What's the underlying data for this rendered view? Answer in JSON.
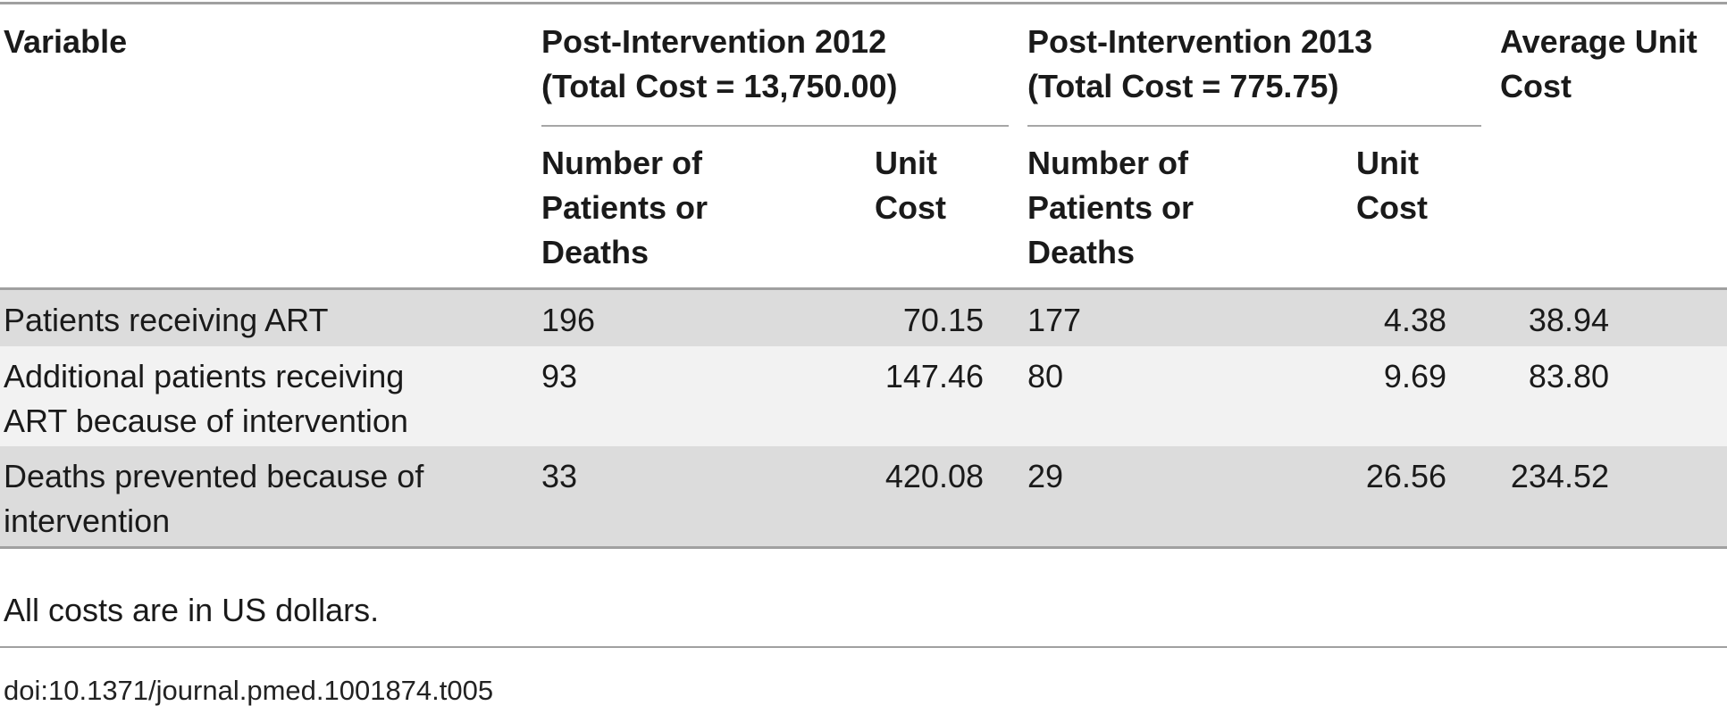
{
  "table": {
    "headers": {
      "variable": "Variable",
      "group_2012": [
        "Post-Intervention 2012",
        "(Total Cost = 13,750.00)"
      ],
      "group_2013": [
        "Post-Intervention 2013",
        "(Total Cost = 775.75)"
      ],
      "average": [
        "Average Unit",
        "Cost"
      ],
      "number_col": [
        "Number of",
        "Patients or",
        "Deaths"
      ],
      "unit_cost_col": [
        "Unit",
        "Cost"
      ]
    },
    "rows": [
      {
        "variable": [
          "Patients receiving ART"
        ],
        "n_2012": "196",
        "uc_2012": "70.15",
        "n_2013": "177",
        "uc_2013": "4.38",
        "avg": "38.94"
      },
      {
        "variable": [
          "Additional patients receiving",
          "ART because of intervention"
        ],
        "n_2012": "93",
        "uc_2012": "147.46",
        "n_2013": "80",
        "uc_2013": "9.69",
        "avg": "83.80"
      },
      {
        "variable": [
          "Deaths prevented because of",
          "intervention"
        ],
        "n_2012": "33",
        "uc_2012": "420.08",
        "n_2013": "29",
        "uc_2013": "26.56",
        "avg": "234.52"
      }
    ],
    "footnote": "All costs are in US dollars.",
    "doi": "doi:10.1371/journal.pmed.1001874.t005"
  }
}
